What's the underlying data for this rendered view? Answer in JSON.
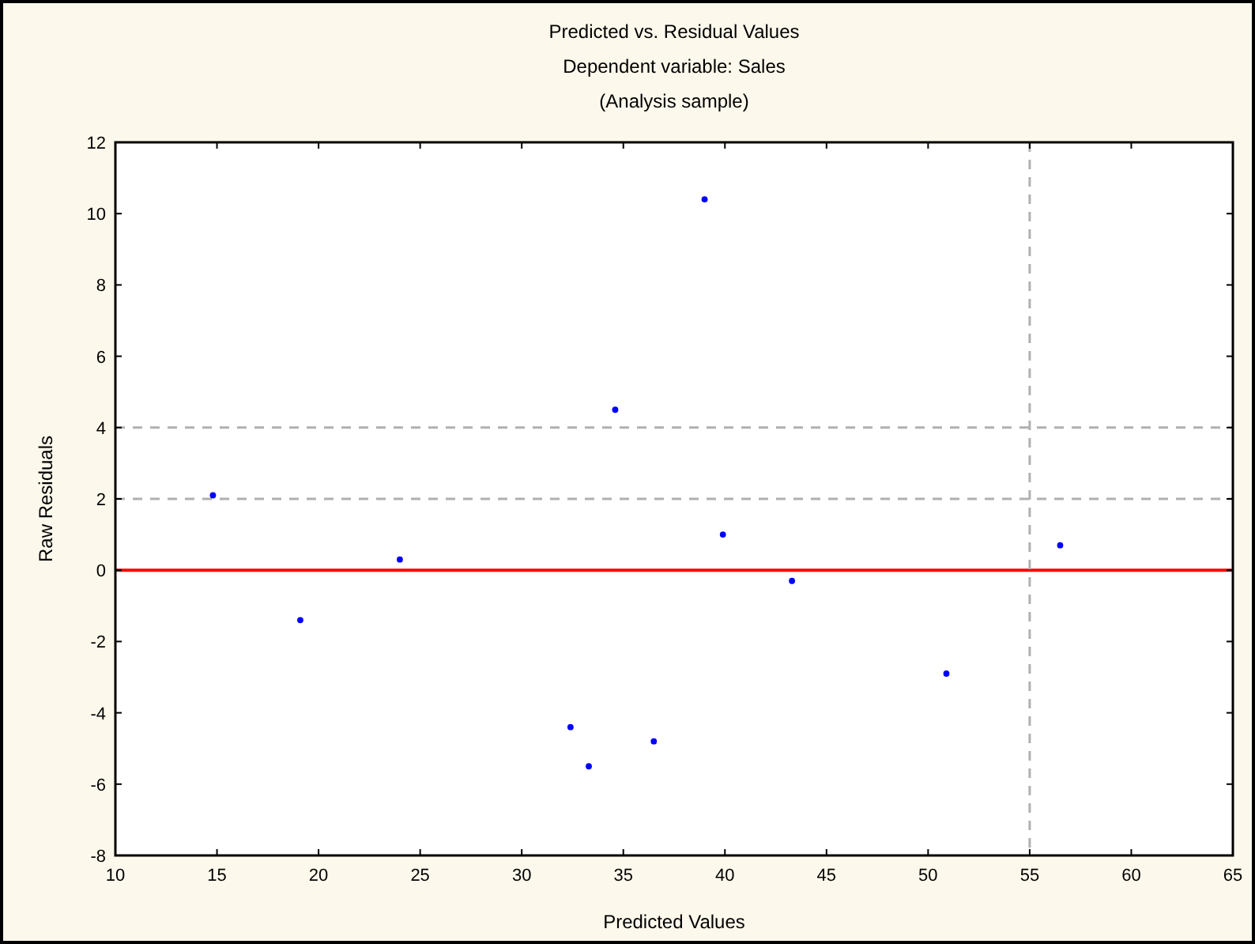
{
  "chart_data": {
    "type": "scatter",
    "title": "Predicted vs. Residual Values",
    "subtitle": "Dependent variable: Sales\n(Analysis sample)",
    "xlabel": "Predicted Values",
    "ylabel": "Raw Residuals",
    "x": [
      14.8,
      19.1,
      24.0,
      32.4,
      33.3,
      34.6,
      36.5,
      39.0,
      39.9,
      43.3,
      50.9,
      56.5
    ],
    "series": [
      {
        "color": "#0000ff",
        "values": [
          2.1,
          -1.4,
          0.3,
          -4.4,
          -5.5,
          4.5,
          -4.8,
          10.4,
          1.0,
          -0.3,
          -2.9,
          0.7
        ]
      }
    ],
    "xlim": [
      10,
      65
    ],
    "xticks": [
      10,
      15,
      20,
      25,
      30,
      35,
      40,
      45,
      50,
      55,
      60,
      65
    ],
    "ylim": [
      -8,
      12
    ],
    "yticks": [
      -8,
      -6,
      -4,
      -2,
      0,
      2,
      4,
      6,
      8,
      10,
      12
    ],
    "ref_lines": [
      {
        "axis": "y",
        "value": 0,
        "color": "#ff0000",
        "line_style": "solid"
      },
      {
        "axis": "y",
        "value": 2,
        "color": "#b0b0b0",
        "line_style": "dashed"
      },
      {
        "axis": "y",
        "value": 4,
        "color": "#b0b0b0",
        "line_style": "dashed"
      },
      {
        "axis": "x",
        "value": 55,
        "color": "#b0b0b0",
        "line_style": "dashed"
      }
    ],
    "marker": "circle",
    "grid": false
  }
}
